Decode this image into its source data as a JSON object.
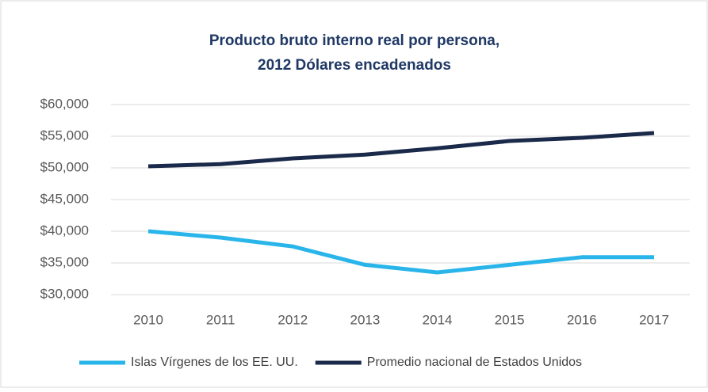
{
  "chart_data": {
    "type": "line",
    "title": [
      "Producto bruto interno real por persona,",
      "2012 Dólares encadenados"
    ],
    "categories": [
      "2010",
      "2011",
      "2012",
      "2013",
      "2014",
      "2015",
      "2016",
      "2017"
    ],
    "series": [
      {
        "name": "Islas Vírgenes de los EE. UU.",
        "color": "#29b5ea",
        "values": [
          40000,
          39000,
          37600,
          34700,
          33500,
          34700,
          35900,
          35900
        ]
      },
      {
        "name": "Promedio nacional de Estados Unidos",
        "color": "#1b2a4a",
        "values": [
          50250,
          50600,
          51500,
          52100,
          53100,
          54250,
          54750,
          55500
        ]
      }
    ],
    "ylim": [
      30000,
      60000
    ],
    "yticks": [
      {
        "value": 30000,
        "label": "$30,000"
      },
      {
        "value": 35000,
        "label": "$35,000"
      },
      {
        "value": 40000,
        "label": "$40,000"
      },
      {
        "value": 45000,
        "label": "$45,000"
      },
      {
        "value": 50000,
        "label": "$50,000"
      },
      {
        "value": 55000,
        "label": "$55,000"
      },
      {
        "value": 60000,
        "label": "$60,000"
      }
    ],
    "grid": true,
    "legend": "bottom"
  }
}
